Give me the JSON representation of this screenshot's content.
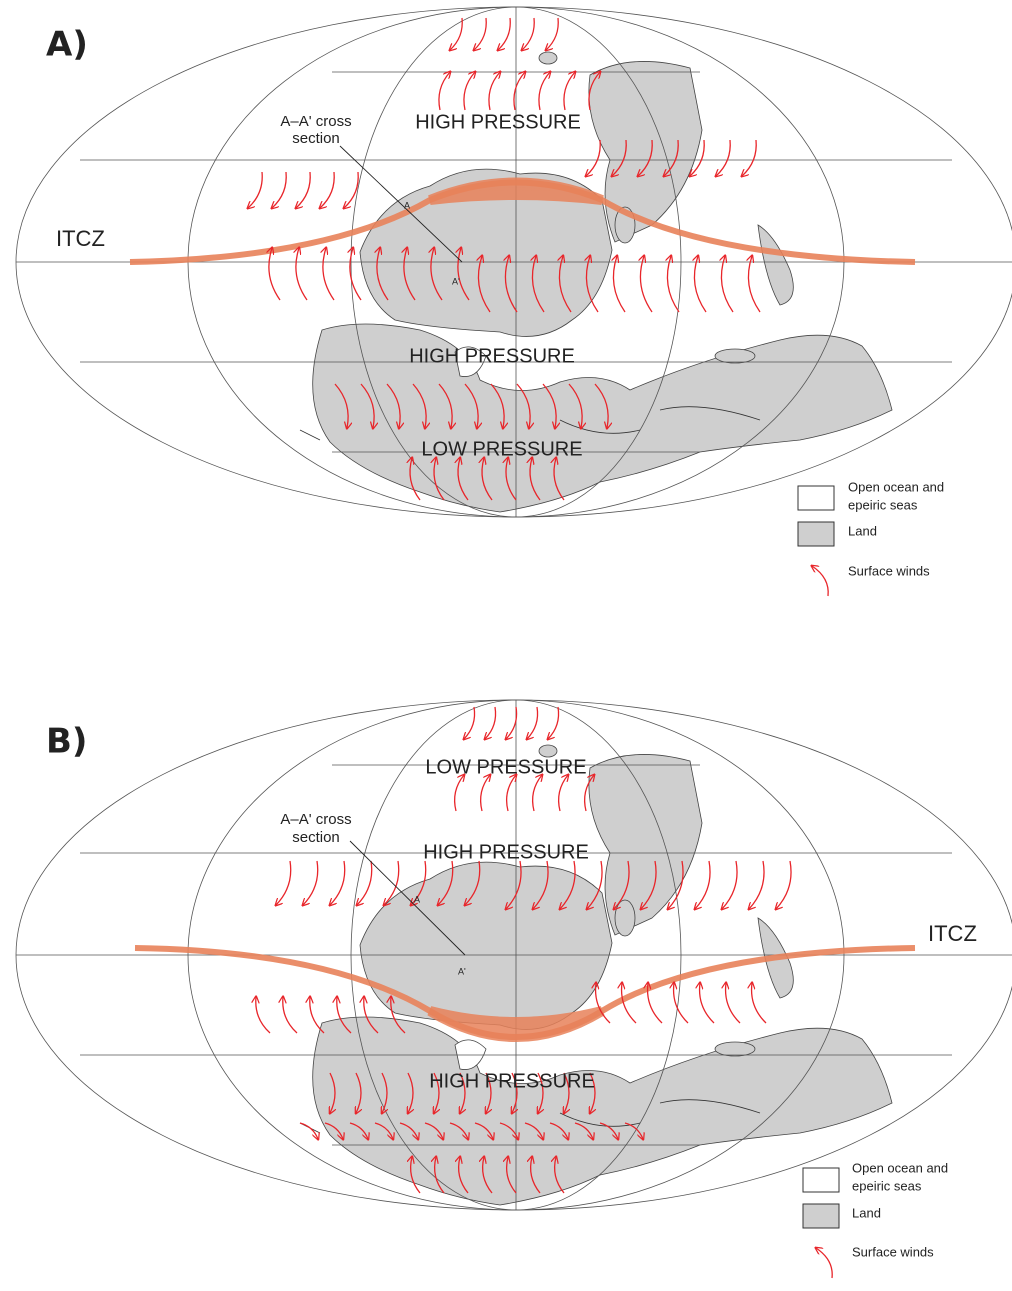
{
  "panels": [
    {
      "label": "A)",
      "pressure_labels": [
        "HIGH PRESSURE",
        "HIGH PRESSURE",
        "LOW PRESSURE"
      ],
      "cross_section": [
        "A–A' cross",
        "section"
      ],
      "section_marks": [
        "A",
        "A'"
      ],
      "itcz": "ITCZ",
      "legend": {
        "ocean": [
          "Open ocean and",
          "epeiric seas"
        ],
        "land": "Land",
        "winds": "Surface winds"
      }
    },
    {
      "label": "B)",
      "pressure_labels": [
        "LOW PRESSURE",
        "HIGH PRESSURE",
        "HIGH PRESSURE"
      ],
      "cross_section": [
        "A–A' cross",
        "section"
      ],
      "section_marks": [
        "A",
        "A'"
      ],
      "itcz": "ITCZ",
      "legend": {
        "ocean": [
          "Open ocean and",
          "epeiric seas"
        ],
        "land": "Land",
        "winds": "Surface winds"
      }
    }
  ]
}
